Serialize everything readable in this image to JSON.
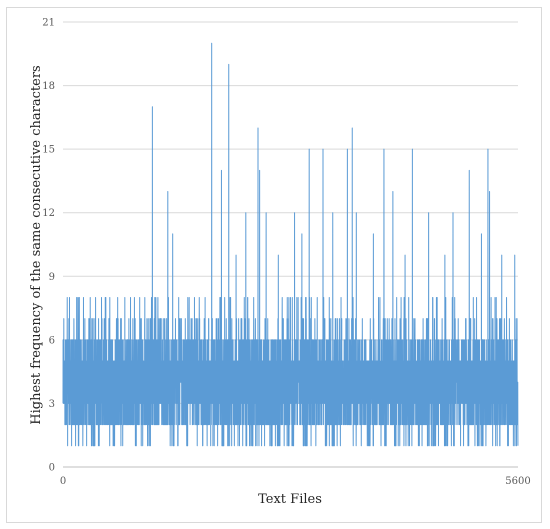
{
  "chart_data": {
    "type": "line",
    "title": "",
    "xlabel": "Text Files",
    "ylabel": "Highest frequency of the same consecutive characters",
    "xlim": [
      0,
      5600
    ],
    "ylim": [
      0,
      21
    ],
    "x_ticks": [
      0,
      5600
    ],
    "y_ticks": [
      0,
      3,
      6,
      9,
      12,
      15,
      18,
      21
    ],
    "x_tick_labels": [
      "0",
      "5600"
    ],
    "y_tick_labels": [
      "0",
      "3",
      "6",
      "9",
      "12",
      "15",
      "18",
      "21"
    ],
    "grid": "horizontal",
    "legend": "none",
    "series_color": "#5b9bd5",
    "baseline_range": [
      1,
      8
    ],
    "typical_range": [
      2,
      6
    ],
    "peaks": [
      {
        "x": 1100,
        "y": 17
      },
      {
        "x": 1290,
        "y": 13
      },
      {
        "x": 1350,
        "y": 11
      },
      {
        "x": 1830,
        "y": 20
      },
      {
        "x": 1950,
        "y": 14
      },
      {
        "x": 2040,
        "y": 19
      },
      {
        "x": 2130,
        "y": 10
      },
      {
        "x": 2250,
        "y": 12
      },
      {
        "x": 2400,
        "y": 16
      },
      {
        "x": 2420,
        "y": 14
      },
      {
        "x": 2500,
        "y": 12
      },
      {
        "x": 2650,
        "y": 10
      },
      {
        "x": 2850,
        "y": 12
      },
      {
        "x": 2940,
        "y": 11
      },
      {
        "x": 3030,
        "y": 15
      },
      {
        "x": 3200,
        "y": 15
      },
      {
        "x": 3320,
        "y": 12
      },
      {
        "x": 3500,
        "y": 15
      },
      {
        "x": 3560,
        "y": 16
      },
      {
        "x": 3610,
        "y": 12
      },
      {
        "x": 3820,
        "y": 11
      },
      {
        "x": 3950,
        "y": 15
      },
      {
        "x": 4060,
        "y": 13
      },
      {
        "x": 4210,
        "y": 10
      },
      {
        "x": 4300,
        "y": 15
      },
      {
        "x": 4500,
        "y": 12
      },
      {
        "x": 4700,
        "y": 10
      },
      {
        "x": 4800,
        "y": 12
      },
      {
        "x": 5000,
        "y": 14
      },
      {
        "x": 5150,
        "y": 11
      },
      {
        "x": 5230,
        "y": 15
      },
      {
        "x": 5250,
        "y": 13
      },
      {
        "x": 5400,
        "y": 10
      },
      {
        "x": 5560,
        "y": 10
      }
    ]
  }
}
